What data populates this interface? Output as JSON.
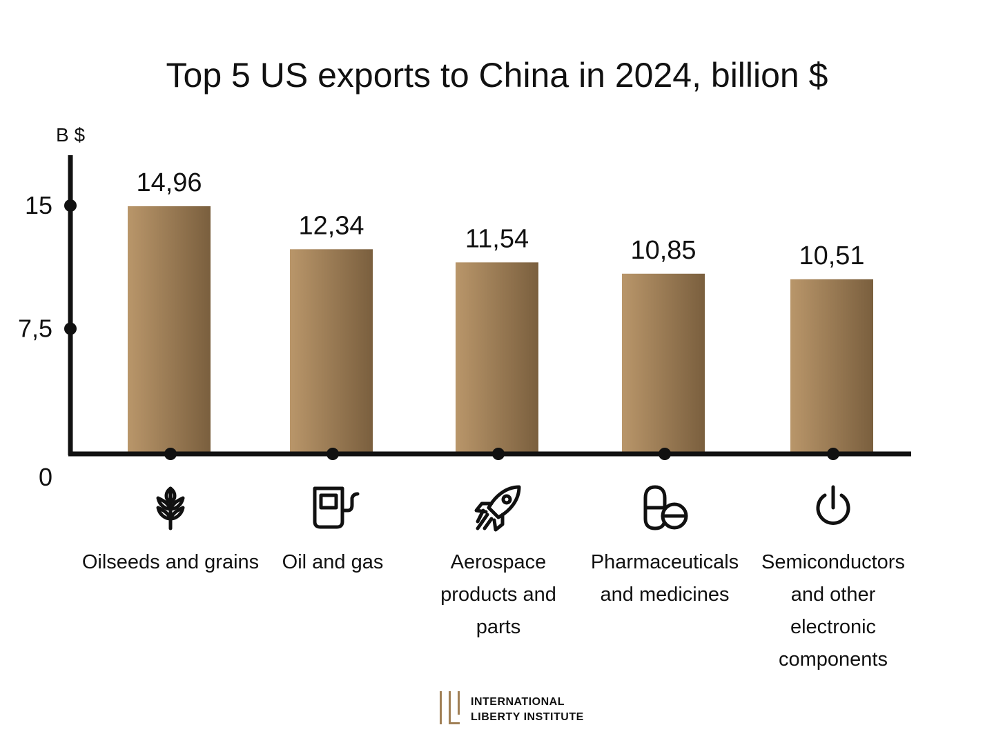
{
  "chart_data": {
    "type": "bar",
    "title": "Top 5 US exports to China in 2024, billion $",
    "ylabel": "B $",
    "ylim": [
      0,
      15
    ],
    "yticks": [
      "0",
      "7,5",
      "15"
    ],
    "ytick_values": [
      0,
      7.5,
      15
    ],
    "categories": [
      "Oilseeds and grains",
      "Oil and gas",
      "Aerospace products and parts",
      "Pharmaceuticals and medicines",
      "Semiconductors and other electronic components"
    ],
    "category_lines": [
      [
        "Oilseeds and grains"
      ],
      [
        "Oil and gas"
      ],
      [
        "Aerospace",
        "products and",
        "parts"
      ],
      [
        "Pharmaceuticals",
        "and medicines"
      ],
      [
        "Semiconductors",
        "and other",
        "electronic",
        "components"
      ]
    ],
    "values": [
      14.96,
      12.34,
      11.54,
      10.85,
      10.51
    ],
    "value_labels": [
      "14,96",
      "12,34",
      "11,54",
      "10,85",
      "10,51"
    ],
    "icons": [
      "wheat-icon",
      "fuel-pump-icon",
      "rocket-icon",
      "pills-icon",
      "power-icon"
    ],
    "bar_gradient": [
      "#b9966a",
      "#7a5f3e"
    ],
    "grid": false,
    "legend": "none"
  },
  "logo": {
    "line1": "INTERNATIONAL",
    "line2": "LIBERTY INSTITUTE",
    "accent_color": "#a07f55"
  }
}
